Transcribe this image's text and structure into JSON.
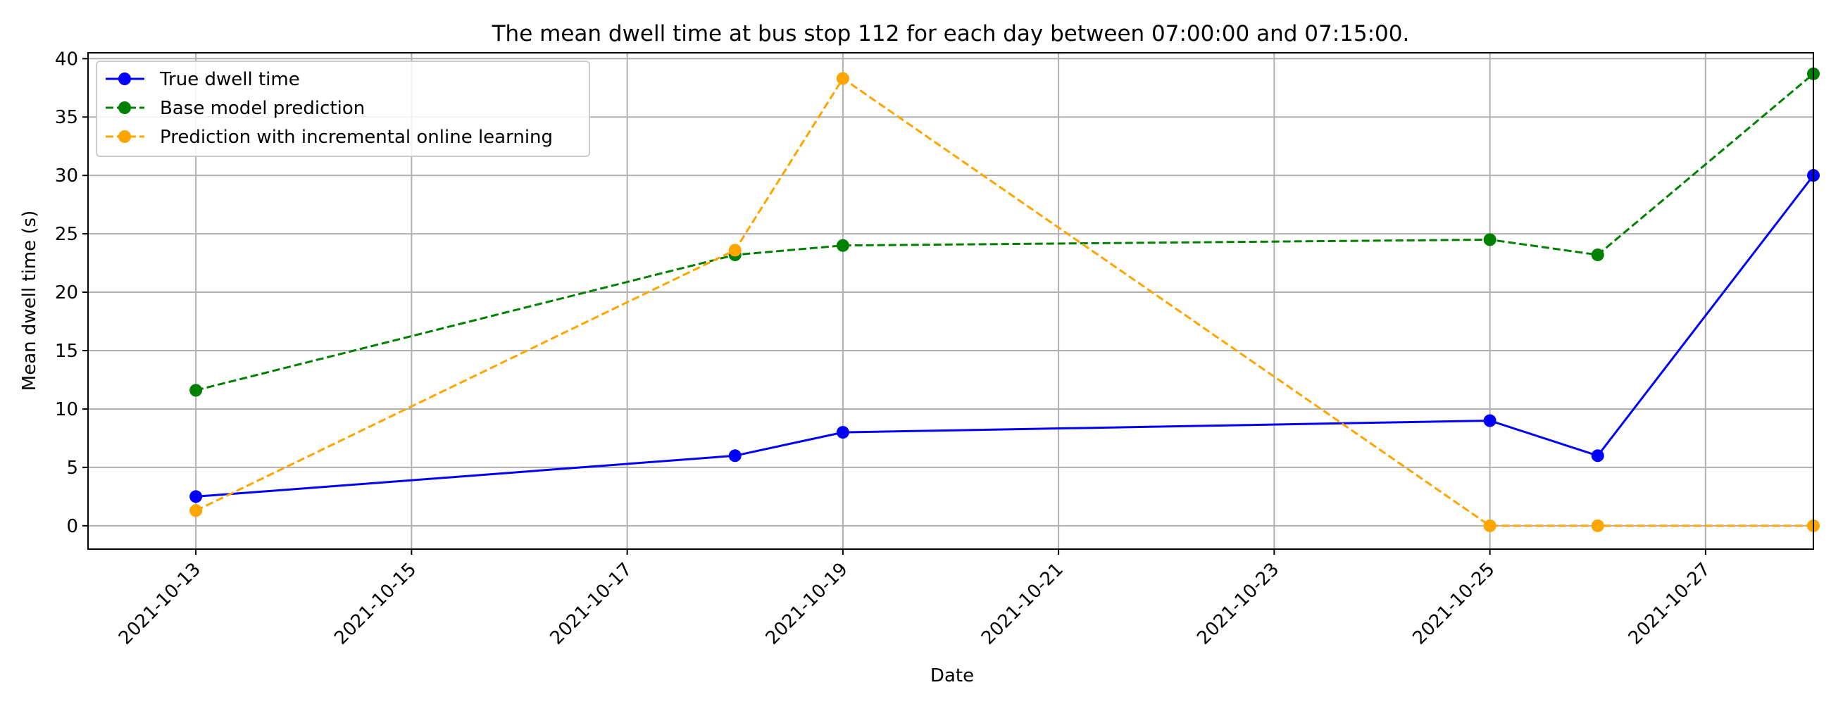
{
  "chart_data": {
    "type": "line",
    "title": "The mean dwell time at bus stop 112 for each day between 07:00:00 and 07:15:00.",
    "xlabel": "Date",
    "ylabel": "Mean dwell time (s)",
    "x_tick_labels": [
      "2021-10-13",
      "2021-10-15",
      "2021-10-17",
      "2021-10-19",
      "2021-10-21",
      "2021-10-23",
      "2021-10-25",
      "2021-10-27"
    ],
    "y_tick_labels": [
      "0",
      "5",
      "10",
      "15",
      "20",
      "25",
      "30",
      "35",
      "40"
    ],
    "ylim": [
      -2,
      40.5
    ],
    "xlim": [
      "2021-10-12",
      "2021-10-28"
    ],
    "grid": true,
    "legend_position": "top-left",
    "x": [
      "2021-10-13",
      "2021-10-18",
      "2021-10-19",
      "2021-10-25",
      "2021-10-26",
      "2021-10-28"
    ],
    "series": [
      {
        "name": "True dwell time",
        "color": "#0000ff",
        "linestyle": "solid",
        "values": [
          2.5,
          6.0,
          8.0,
          9.0,
          6.0,
          30.0
        ]
      },
      {
        "name": "Base model prediction",
        "color": "#008000",
        "linestyle": "dashed",
        "values": [
          11.6,
          23.2,
          24.0,
          24.5,
          23.2,
          38.7
        ]
      },
      {
        "name": "Prediction with incremental online learning",
        "color": "#ffa500",
        "linestyle": "dashed",
        "values": [
          1.3,
          23.6,
          38.3,
          0.0,
          0.0,
          0.0
        ]
      }
    ]
  }
}
